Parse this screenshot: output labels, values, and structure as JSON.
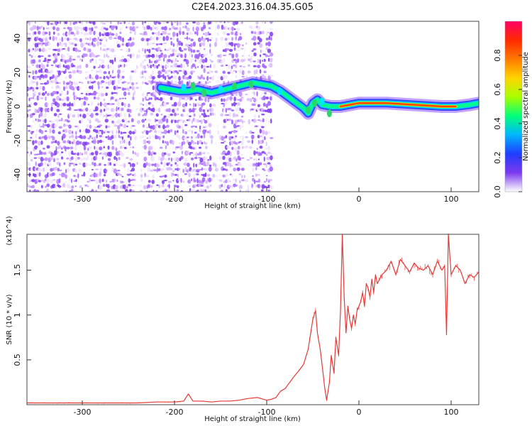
{
  "figure": {
    "title": "C2E4.2023.316.04.35.G05"
  },
  "chart_data": [
    {
      "type": "heatmap",
      "xlabel": "Height of straight line (km)",
      "ylabel": "Frequency (Hz)",
      "xlim": [
        -360,
        130
      ],
      "ylim": [
        -50,
        50
      ],
      "x_ticks": [
        -300,
        -200,
        -100,
        0,
        100
      ],
      "y_ticks": [
        -40,
        -20,
        0,
        20,
        40
      ],
      "colorbar": {
        "label": "Normalized spectral amplitude",
        "range": [
          0,
          1
        ],
        "ticks": [
          0.0,
          0.2,
          0.4,
          0.6,
          0.8
        ],
        "colors": [
          "#ffffff",
          "#7c3aed",
          "#1f3cff",
          "#00b7ff",
          "#00ff7a",
          "#a7ff00",
          "#ffd400",
          "#ff7a00",
          "#ff2a00",
          "#ff0066"
        ]
      },
      "ridge_frequency_trace": {
        "x": [
          -215,
          -205,
          -195,
          -185,
          -175,
          -160,
          -145,
          -130,
          -115,
          -105,
          -95,
          -85,
          -75,
          -65,
          -60,
          -55,
          -50,
          -45,
          -40,
          -30,
          -20,
          -10,
          0,
          10,
          30,
          60,
          90,
          105,
          120,
          130
        ],
        "y": [
          11,
          10,
          9,
          9,
          10,
          8,
          10,
          12,
          14,
          13,
          12,
          9,
          5,
          1,
          -1,
          -4,
          2,
          4,
          1,
          0,
          0,
          1,
          2,
          2,
          2,
          1,
          0,
          0,
          1,
          2
        ]
      },
      "noise_region": {
        "x_start": -360,
        "x_end": -95
      }
    },
    {
      "type": "line",
      "xlabel": "Height of straight line (km)",
      "ylabel": "SNR (10 * v/v)",
      "multiplier_label": "(x10^4)",
      "xlim": [
        -360,
        130
      ],
      "ylim": [
        0,
        1.9
      ],
      "x_ticks": [
        -300,
        -200,
        -100,
        0,
        100
      ],
      "y_ticks": [
        0.5,
        1.0,
        1.5
      ],
      "series": [
        {
          "color": "#e53935",
          "x": [
            -360,
            -340,
            -320,
            -300,
            -280,
            -260,
            -240,
            -220,
            -200,
            -190,
            -185,
            -180,
            -170,
            -160,
            -150,
            -140,
            -130,
            -120,
            -110,
            -100,
            -95,
            -90,
            -85,
            -80,
            -75,
            -70,
            -65,
            -60,
            -55,
            -50,
            -47,
            -45,
            -42,
            -40,
            -37,
            -35,
            -32,
            -30,
            -27,
            -25,
            -22,
            -20,
            -18,
            -16,
            -14,
            -12,
            -10,
            -8,
            -6,
            -4,
            -2,
            0,
            2,
            4,
            6,
            8,
            10,
            12,
            14,
            16,
            18,
            20,
            25,
            30,
            35,
            40,
            45,
            50,
            55,
            60,
            65,
            70,
            75,
            80,
            85,
            90,
            93,
            95,
            97,
            100,
            105,
            110,
            115,
            120,
            125,
            130
          ],
          "y": [
            0.02,
            0.02,
            0.02,
            0.02,
            0.02,
            0.02,
            0.02,
            0.03,
            0.03,
            0.04,
            0.12,
            0.04,
            0.04,
            0.03,
            0.04,
            0.04,
            0.05,
            0.07,
            0.08,
            0.05,
            0.06,
            0.08,
            0.15,
            0.18,
            0.25,
            0.32,
            0.38,
            0.45,
            0.62,
            0.95,
            1.05,
            0.8,
            0.62,
            0.45,
            0.18,
            0.05,
            0.25,
            0.55,
            0.35,
            0.75,
            0.55,
            1.05,
            1.9,
            1.2,
            0.8,
            1.1,
            0.95,
            0.85,
            1.0,
            0.9,
            1.05,
            1.1,
            1.15,
            1.25,
            1.1,
            1.35,
            1.3,
            1.2,
            1.4,
            1.25,
            1.45,
            1.35,
            1.45,
            1.5,
            1.6,
            1.45,
            1.62,
            1.55,
            1.48,
            1.58,
            1.52,
            1.5,
            1.55,
            1.45,
            1.6,
            1.5,
            1.55,
            0.78,
            1.9,
            1.45,
            1.55,
            1.5,
            1.35,
            1.45,
            1.42,
            1.48
          ]
        }
      ]
    }
  ]
}
